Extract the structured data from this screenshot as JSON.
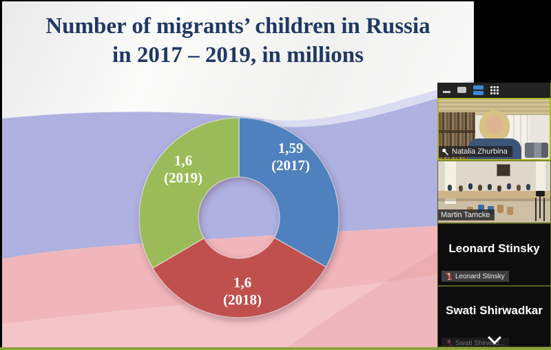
{
  "slide": {
    "title_line1": "Number of migrants’ children in Russia",
    "title_line2": "in 2017 – 2019, in millions",
    "title_color": "#1f3864",
    "flag_colors": {
      "white": "#f6f6f5",
      "blue": "#afb1e1",
      "red": "#f0b6bb"
    }
  },
  "chart_data": {
    "type": "pie",
    "subtype": "donut",
    "title": "Number of migrants’ children in Russia in 2017 – 2019, in millions",
    "units": "millions",
    "categories": [
      "2017",
      "2018",
      "2019"
    ],
    "values": [
      1.59,
      1.6,
      1.6
    ],
    "slice_colors": [
      "#4e81bd",
      "#c0504d",
      "#9bbb59"
    ],
    "start_angle_deg": 0,
    "direction": "clockwise",
    "labels": [
      {
        "value": "1,59",
        "year": "(2017)"
      },
      {
        "value": "1,6",
        "year": "(2018)"
      },
      {
        "value": "1,6",
        "year": "(2019)"
      }
    ]
  },
  "video_panel": {
    "toolbar": {
      "active_view_color": "#3f87d4",
      "icons": [
        "minimize-icon",
        "speaker-view-icon",
        "filmstrip-view-icon",
        "grid-view-icon"
      ]
    },
    "active_speaker_border": "#a6b822",
    "participants": [
      {
        "name": "Natalia Zhurbina",
        "tile": "video",
        "label": "Natalia Zhurbina",
        "pinned": true
      },
      {
        "name": "Martin Tamcke",
        "tile": "video",
        "label": "Martin Tamcke"
      },
      {
        "name": "Leonard Stinsky",
        "tile": "name",
        "sublabel": "Leonard Stinsky",
        "muted": true
      },
      {
        "name": "Swati Shirwadkar",
        "tile": "name",
        "sublabel": "Swati Shirwad...",
        "muted": true
      }
    ]
  }
}
